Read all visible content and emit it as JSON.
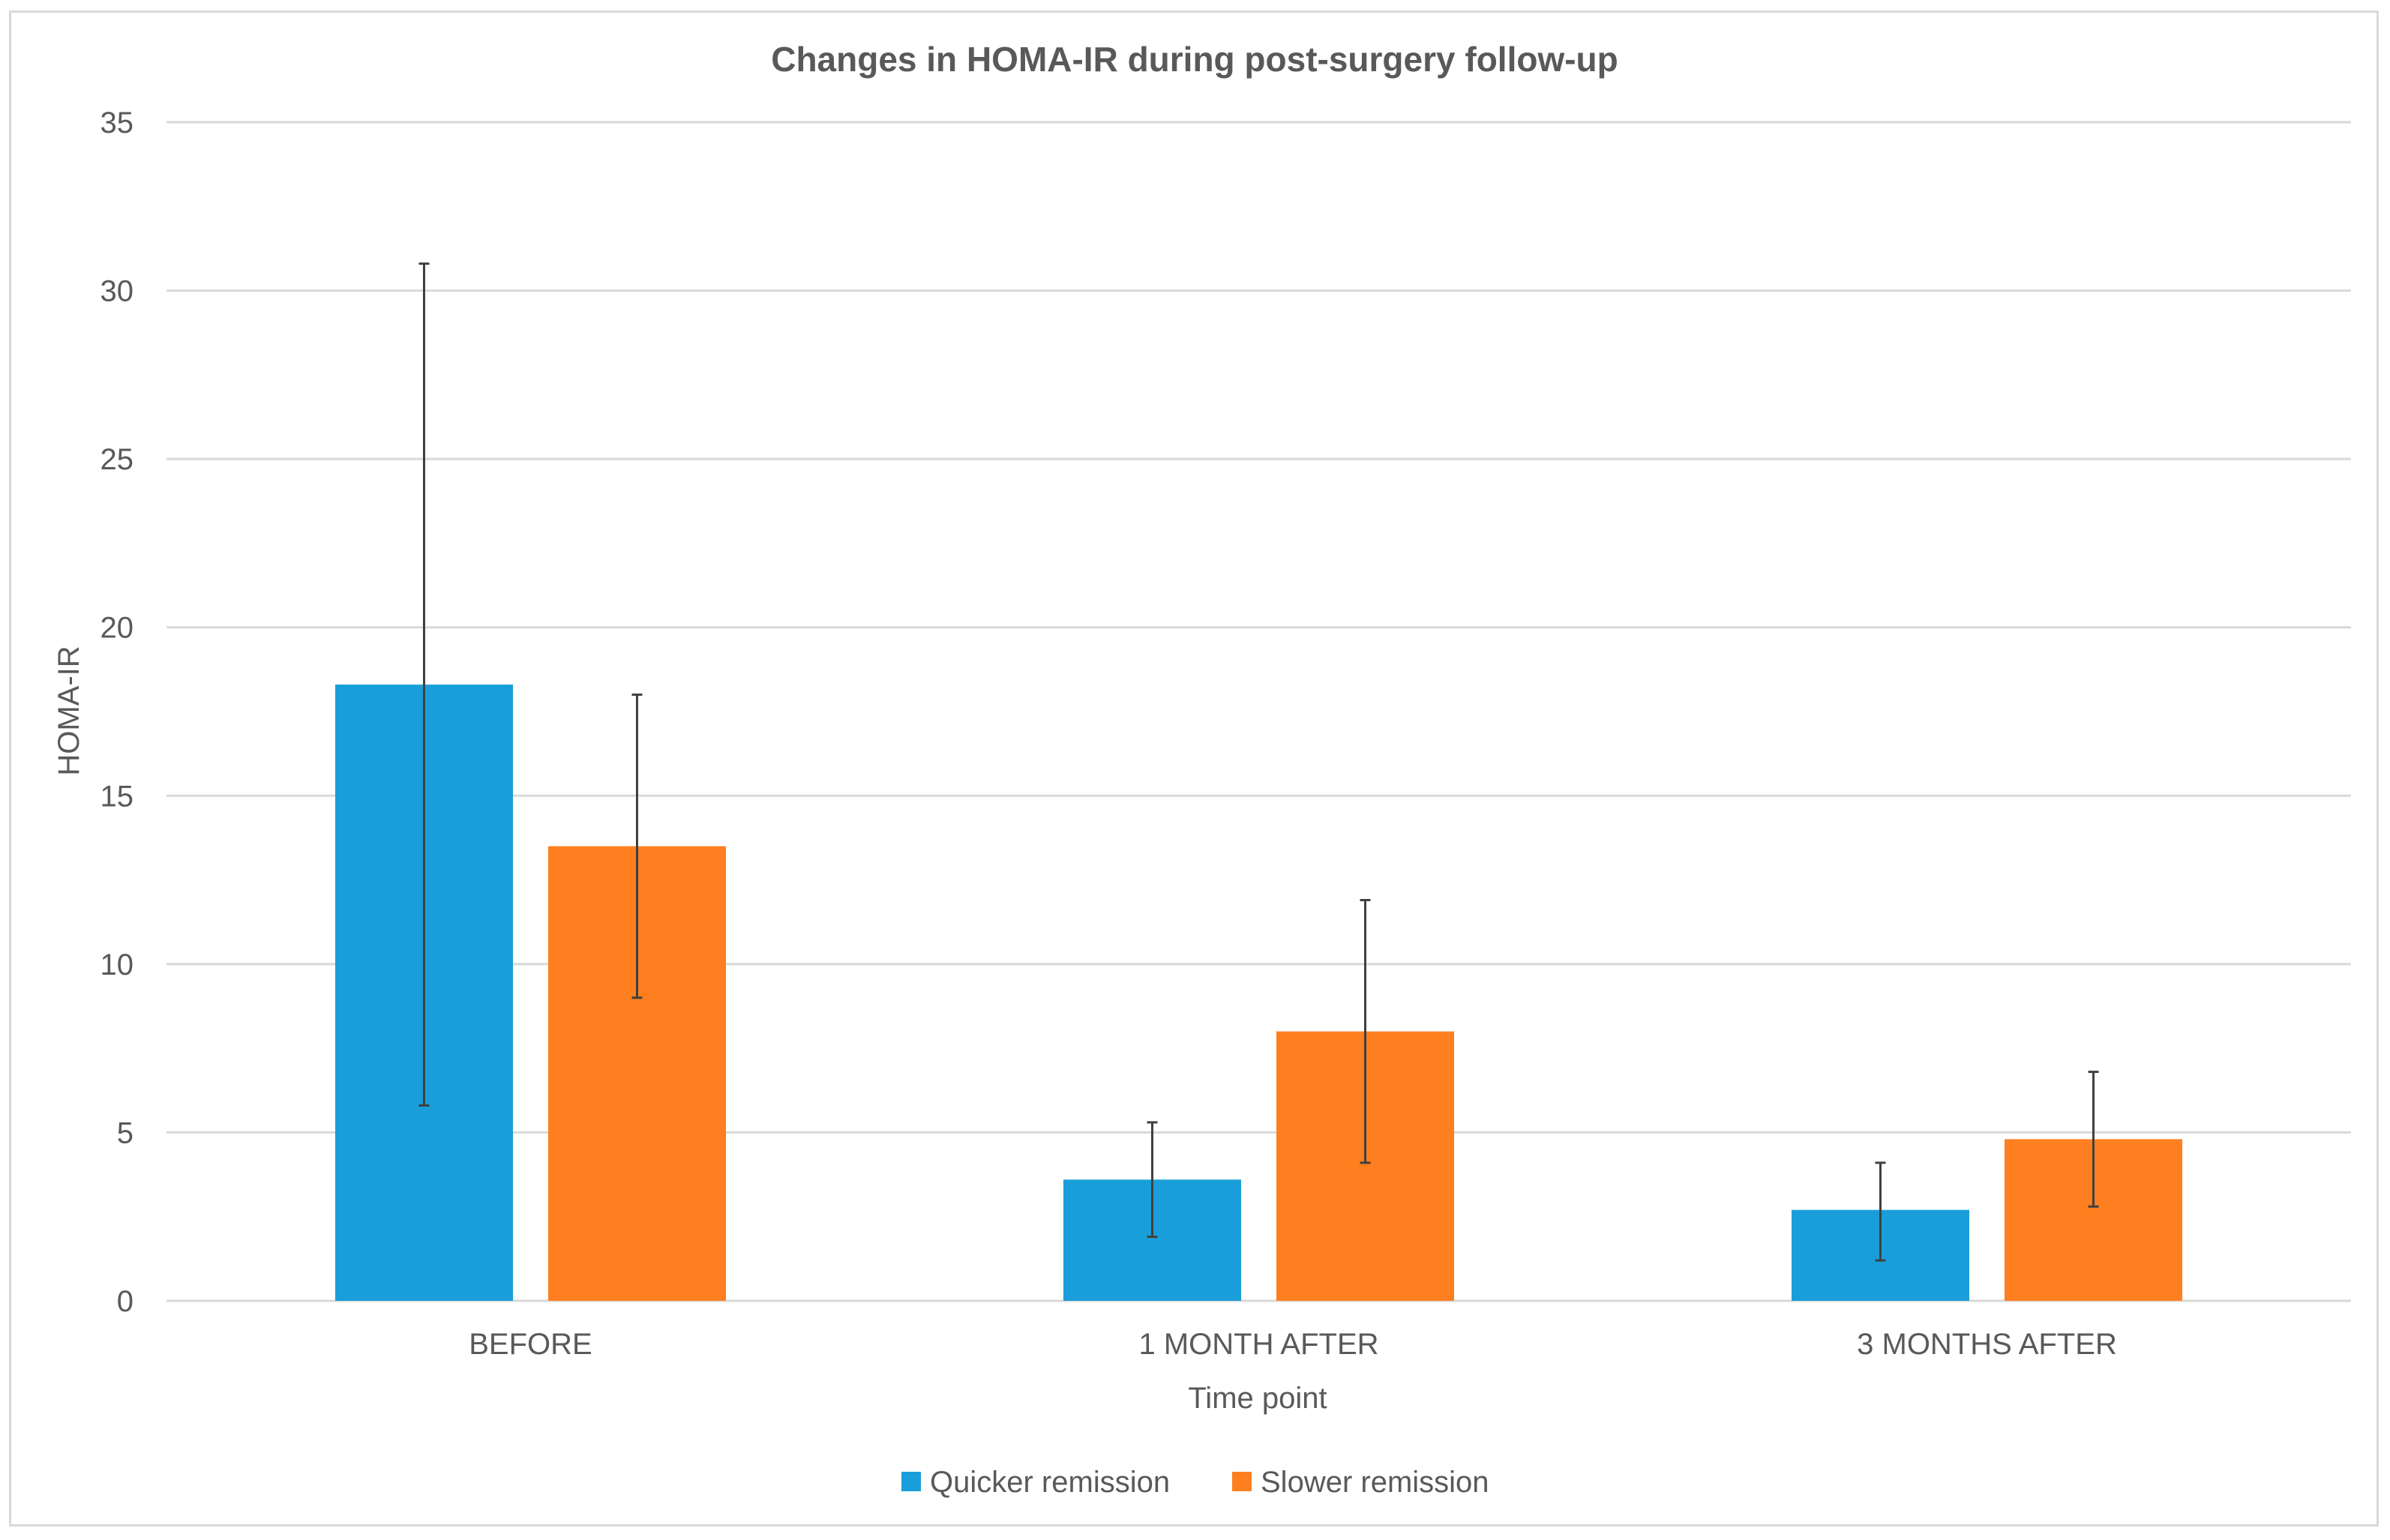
{
  "chart_data": {
    "type": "bar",
    "title": "Changes in HOMA-IR during post-surgery follow-up",
    "xlabel": "Time point",
    "ylabel": "HOMA-IR",
    "categories": [
      "BEFORE",
      "1 MONTH AFTER",
      "3 MONTHS AFTER"
    ],
    "ylim": [
      0,
      35
    ],
    "yticks": [
      0,
      5,
      10,
      15,
      20,
      25,
      30,
      35
    ],
    "grid": true,
    "legend_position": "bottom",
    "series": [
      {
        "name": "Quicker remission",
        "color": "#1a9ed9",
        "values": [
          18.3,
          3.6,
          2.7
        ],
        "error_low": [
          5.8,
          1.9,
          1.2
        ],
        "error_high": [
          30.8,
          5.3,
          4.1
        ]
      },
      {
        "name": "Slower remission",
        "color": "#fd7f20",
        "values": [
          13.5,
          8.0,
          4.8
        ],
        "error_low": [
          9.0,
          4.1,
          2.8
        ],
        "error_high": [
          18.0,
          11.9,
          6.8
        ]
      }
    ]
  }
}
